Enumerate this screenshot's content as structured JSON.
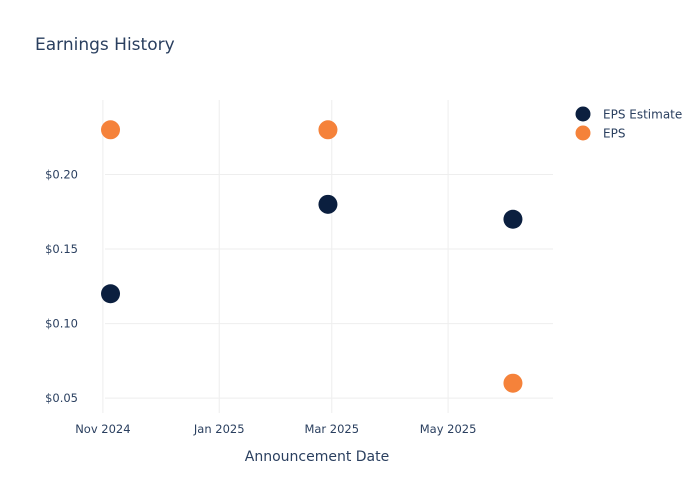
{
  "chart_data": {
    "type": "scatter",
    "title": "Earnings History",
    "xlabel": "Announcement Date",
    "ylabel": "",
    "x_ticks": [
      {
        "date": "2024-11-01",
        "label": "Nov 2024"
      },
      {
        "date": "2025-01-01",
        "label": "Jan 2025"
      },
      {
        "date": "2025-03-01",
        "label": "Mar 2025"
      },
      {
        "date": "2025-05-01",
        "label": "May 2025"
      }
    ],
    "y_ticks": [
      {
        "value": 0.05,
        "label": "$0.05"
      },
      {
        "value": 0.1,
        "label": "$0.10"
      },
      {
        "value": 0.15,
        "label": "$0.15"
      },
      {
        "value": 0.2,
        "label": "$0.20"
      }
    ],
    "xlim": [
      "2024-10-20",
      "2025-06-25"
    ],
    "ylim": [
      0.04,
      0.25
    ],
    "grid": true,
    "legend_position": "top-right",
    "series": [
      {
        "name": "EPS Estimate",
        "color": "#0b1f3f",
        "points": [
          {
            "x": "2024-11-05",
            "y": 0.12
          },
          {
            "x": "2025-02-27",
            "y": 0.18
          },
          {
            "x": "2025-06-04",
            "y": 0.17
          }
        ]
      },
      {
        "name": "EPS",
        "color": "#f5823a",
        "points": [
          {
            "x": "2024-11-05",
            "y": 0.23
          },
          {
            "x": "2025-02-27",
            "y": 0.23
          },
          {
            "x": "2025-06-04",
            "y": 0.06
          }
        ]
      }
    ]
  }
}
